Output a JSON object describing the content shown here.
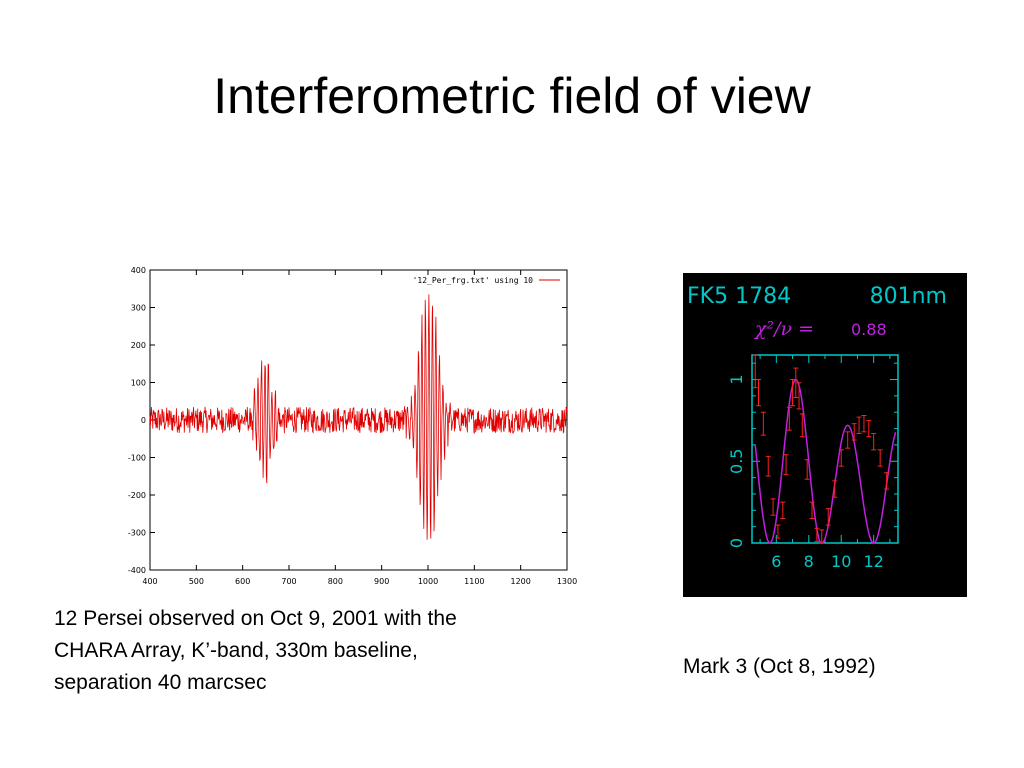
{
  "slide": {
    "title": "Interferometric field of view",
    "caption_left": [
      "12 Persei observed on Oct 9, 2001 with the",
      "CHARA Array, K’-band, 330m baseline,",
      "separation 40 marcsec"
    ],
    "caption_right": "Mark 3 (Oct 8, 1992)"
  },
  "chart_data": [
    {
      "type": "line",
      "legend": "'12_Per_frg.txt' using 10",
      "legend_position": "top-right",
      "xlim": [
        400,
        1300
      ],
      "ylim": [
        -400,
        400
      ],
      "xticks": [
        400,
        500,
        600,
        700,
        800,
        900,
        1000,
        1100,
        1200,
        1300
      ],
      "yticks": [
        400,
        300,
        200,
        100,
        0,
        -100,
        -200,
        -300,
        -400
      ],
      "line_color": "#e00000",
      "background": "#ffffff",
      "grid": false,
      "envelopes": [
        {
          "center": 648,
          "amplitude": 165
        },
        {
          "center": 1002,
          "amplitude": 345
        }
      ],
      "noise_amplitude": 35
    },
    {
      "type": "scatter",
      "title_left": "FK5  1784",
      "title_right": "801nm",
      "chi2_label": "χ²/ν =",
      "chi2_value": "0.88",
      "background": "#000000",
      "axis_color": "#00c8c8",
      "xlim": [
        4.5,
        13.5
      ],
      "ylim": [
        0,
        1.15
      ],
      "xticks": [
        6,
        8,
        10,
        12
      ],
      "yticks": [
        0,
        0.5,
        1
      ],
      "yticklabels": [
        "0",
        "0.5",
        "1"
      ],
      "fit_color": "#c020e0",
      "points_color": "#ff2020",
      "points": [
        {
          "x": 4.7,
          "y": 1.05,
          "err": 0.1
        },
        {
          "x": 4.9,
          "y": 0.92,
          "err": 0.08
        },
        {
          "x": 5.2,
          "y": 0.73,
          "err": 0.07
        },
        {
          "x": 5.5,
          "y": 0.47,
          "err": 0.06
        },
        {
          "x": 5.8,
          "y": 0.22,
          "err": 0.05
        },
        {
          "x": 6.1,
          "y": 0.07,
          "err": 0.04
        },
        {
          "x": 6.4,
          "y": 0.2,
          "err": 0.05
        },
        {
          "x": 6.6,
          "y": 0.48,
          "err": 0.06
        },
        {
          "x": 6.8,
          "y": 0.76,
          "err": 0.07
        },
        {
          "x": 7.0,
          "y": 0.92,
          "err": 0.08
        },
        {
          "x": 7.2,
          "y": 0.98,
          "err": 0.09
        },
        {
          "x": 7.4,
          "y": 0.9,
          "err": 0.08
        },
        {
          "x": 7.6,
          "y": 0.72,
          "err": 0.07
        },
        {
          "x": 7.9,
          "y": 0.45,
          "err": 0.06
        },
        {
          "x": 8.2,
          "y": 0.2,
          "err": 0.05
        },
        {
          "x": 8.5,
          "y": 0.05,
          "err": 0.04
        },
        {
          "x": 8.8,
          "y": 0.04,
          "err": 0.04
        },
        {
          "x": 9.2,
          "y": 0.16,
          "err": 0.05
        },
        {
          "x": 9.6,
          "y": 0.33,
          "err": 0.05
        },
        {
          "x": 10.0,
          "y": 0.52,
          "err": 0.05
        },
        {
          "x": 10.4,
          "y": 0.63,
          "err": 0.05
        },
        {
          "x": 10.8,
          "y": 0.68,
          "err": 0.05
        },
        {
          "x": 11.1,
          "y": 0.72,
          "err": 0.05
        },
        {
          "x": 11.4,
          "y": 0.73,
          "err": 0.05
        },
        {
          "x": 11.7,
          "y": 0.7,
          "err": 0.05
        },
        {
          "x": 12.0,
          "y": 0.62,
          "err": 0.05
        },
        {
          "x": 12.4,
          "y": 0.52,
          "err": 0.05
        },
        {
          "x": 12.8,
          "y": 0.38,
          "err": 0.05
        }
      ]
    }
  ]
}
